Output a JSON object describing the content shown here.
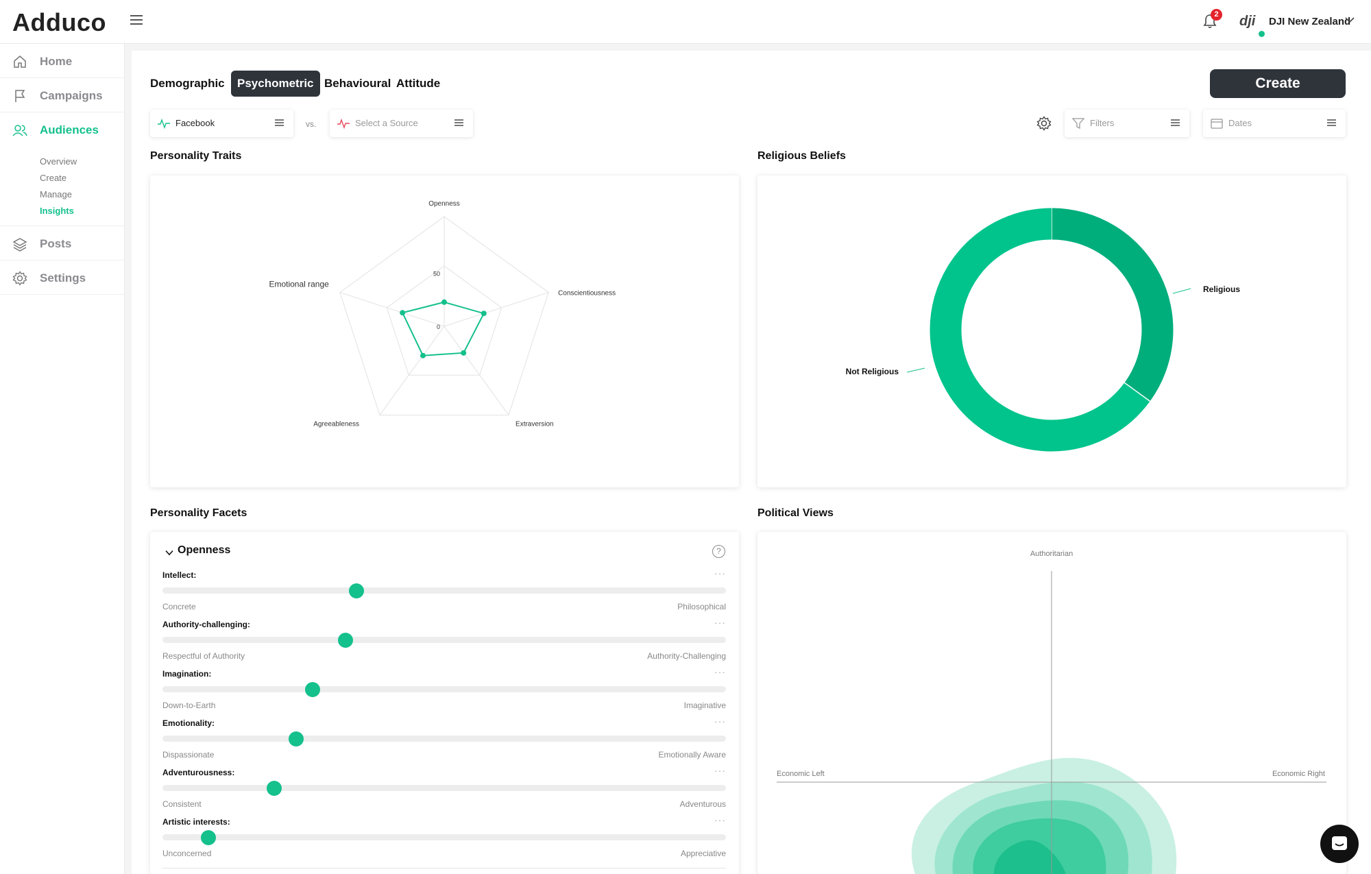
{
  "app": {
    "logo": "Adduco"
  },
  "header": {
    "notifications_count": "2",
    "brand_logo": "dji",
    "account_name": "DJI New Zealand"
  },
  "sidebar": {
    "items": [
      {
        "label": "Home",
        "icon": "home-icon"
      },
      {
        "label": "Campaigns",
        "icon": "flag-icon"
      },
      {
        "label": "Audiences",
        "icon": "users-icon"
      },
      {
        "label": "Posts",
        "icon": "layers-icon"
      },
      {
        "label": "Settings",
        "icon": "gear-icon"
      }
    ],
    "sub_items": [
      "Overview",
      "Create",
      "Manage",
      "Insights"
    ],
    "active_item": "Audiences",
    "active_sub_item": "Insights"
  },
  "tabs": [
    "Demographic",
    "Psychometric",
    "Behavioural",
    "Attitude"
  ],
  "active_tab": "Psychometric",
  "create_button": "Create",
  "sources": {
    "primary": "Facebook",
    "vs": "vs.",
    "secondary_placeholder": "Select a Source"
  },
  "filters": {
    "label": "Filters"
  },
  "dates": {
    "label": "Dates"
  },
  "sections": {
    "personality_traits": "Personality Traits",
    "religious_beliefs": "Religious Beliefs",
    "personality_facets": "Personality Facets",
    "political_views": "Political Views"
  },
  "radar": {
    "axes": [
      "Openness",
      "Conscientiousness",
      "Extraversion",
      "Agreeableness",
      "Emotional range"
    ],
    "scale_labels": [
      "50",
      "0"
    ],
    "values": [
      22,
      38,
      30,
      33,
      40
    ],
    "max": 100
  },
  "religion": {
    "labels": [
      "Religious",
      "Not Religious"
    ],
    "values": [
      0.35,
      0.65
    ],
    "colors": [
      "#00ae7c",
      "#00c48c"
    ]
  },
  "facets": {
    "group": "Openness",
    "items": [
      {
        "title": "Intellect:",
        "left": "Concrete",
        "right": "Philosophical",
        "value": 0.344
      },
      {
        "title": "Authority-challenging:",
        "left": "Respectful of Authority",
        "right": "Authority-Challenging",
        "value": 0.325
      },
      {
        "title": "Imagination:",
        "left": "Down-to-Earth",
        "right": "Imaginative",
        "value": 0.267
      },
      {
        "title": "Emotionality:",
        "left": "Dispassionate",
        "right": "Emotionally Aware",
        "value": 0.237
      },
      {
        "title": "Adventurousness:",
        "left": "Consistent",
        "right": "Adventurous",
        "value": 0.198
      },
      {
        "title": "Artistic interests:",
        "left": "Unconcerned",
        "right": "Appreciative",
        "value": 0.081
      }
    ]
  },
  "political": {
    "top": "Authoritarian",
    "left": "Economic Left",
    "right": "Economic Right"
  },
  "colors": {
    "accent": "#14c08c",
    "dark": "#2f343b",
    "badge": "#e5232c"
  }
}
